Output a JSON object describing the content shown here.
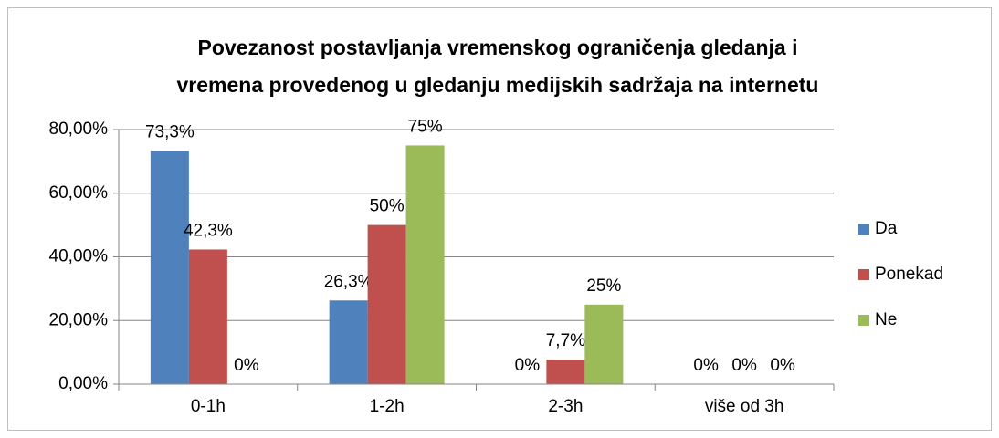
{
  "chart_data": {
    "type": "bar",
    "title": [
      "Povezanost postavljanja vremenskog ograničenja gledanja i",
      "vremena provedenog u gledanju medijskih sadržaja na internetu"
    ],
    "categories": [
      "0-1h",
      "1-2h",
      "2-3h",
      "više od 3h"
    ],
    "series": [
      {
        "name": "Da",
        "color": "#4f81bd",
        "values": [
          73.3,
          26.3,
          0,
          0
        ],
        "value_labels": [
          "73,3%",
          "26,3%",
          "0%",
          "0%"
        ]
      },
      {
        "name": "Ponekad",
        "color": "#c0504d",
        "values": [
          42.3,
          50,
          7.7,
          0
        ],
        "value_labels": [
          "42,3%",
          "50%",
          "7,7%",
          "0%"
        ]
      },
      {
        "name": "Ne",
        "color": "#9bbb59",
        "values": [
          0,
          75,
          25,
          0
        ],
        "value_labels": [
          "0%",
          "75%",
          "25%",
          "0%"
        ]
      }
    ],
    "ylim": [
      0,
      80
    ],
    "yticks": [
      {
        "value": 0,
        "label": "0,00%"
      },
      {
        "value": 20,
        "label": "20,00%"
      },
      {
        "value": 40,
        "label": "40,00%"
      },
      {
        "value": 60,
        "label": "60,00%"
      },
      {
        "value": 80,
        "label": "80,00%"
      }
    ],
    "grid": true,
    "legend": "right"
  }
}
